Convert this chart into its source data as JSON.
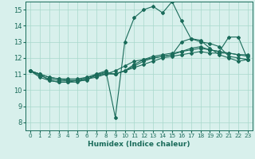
{
  "xlabel": "Humidex (Indice chaleur)",
  "xlim": [
    -0.5,
    23.5
  ],
  "ylim": [
    7.5,
    15.5
  ],
  "yticks": [
    8,
    9,
    10,
    11,
    12,
    13,
    14,
    15
  ],
  "xticks": [
    0,
    1,
    2,
    3,
    4,
    5,
    6,
    7,
    8,
    9,
    10,
    11,
    12,
    13,
    14,
    15,
    16,
    17,
    18,
    19,
    20,
    21,
    22,
    23
  ],
  "bg_color": "#d8f0ec",
  "grid_color": "#a8d8cc",
  "line_color": "#1a6b5a",
  "lines": [
    [
      11.2,
      11.0,
      10.6,
      10.5,
      10.5,
      10.6,
      10.6,
      11.0,
      11.2,
      8.3,
      13.0,
      14.5,
      15.0,
      15.2,
      14.8,
      15.5,
      14.3,
      13.2,
      13.1,
      12.6,
      12.2,
      12.0,
      11.8,
      11.9
    ],
    [
      11.2,
      10.8,
      10.6,
      10.5,
      10.5,
      10.5,
      10.7,
      10.8,
      11.0,
      11.2,
      11.5,
      11.8,
      11.9,
      12.1,
      12.2,
      12.3,
      12.4,
      12.5,
      12.6,
      12.5,
      12.4,
      12.3,
      12.2,
      12.2
    ],
    [
      11.2,
      10.9,
      10.7,
      10.6,
      10.6,
      10.6,
      10.7,
      10.9,
      11.0,
      11.0,
      11.2,
      11.4,
      11.6,
      11.8,
      12.0,
      12.1,
      12.2,
      12.3,
      12.4,
      12.3,
      12.3,
      12.3,
      12.2,
      12.1
    ],
    [
      11.2,
      11.0,
      10.8,
      10.7,
      10.6,
      10.6,
      10.8,
      10.9,
      11.1,
      11.0,
      11.2,
      11.6,
      11.9,
      12.0,
      12.1,
      12.2,
      13.0,
      13.2,
      13.0,
      12.9,
      12.7,
      12.1,
      12.0,
      11.9
    ],
    [
      11.2,
      11.0,
      10.8,
      10.7,
      10.7,
      10.7,
      10.8,
      11.0,
      11.1,
      11.0,
      11.2,
      11.5,
      11.8,
      12.0,
      12.1,
      12.2,
      12.4,
      12.6,
      12.7,
      12.5,
      12.4,
      13.3,
      13.3,
      11.9
    ]
  ]
}
